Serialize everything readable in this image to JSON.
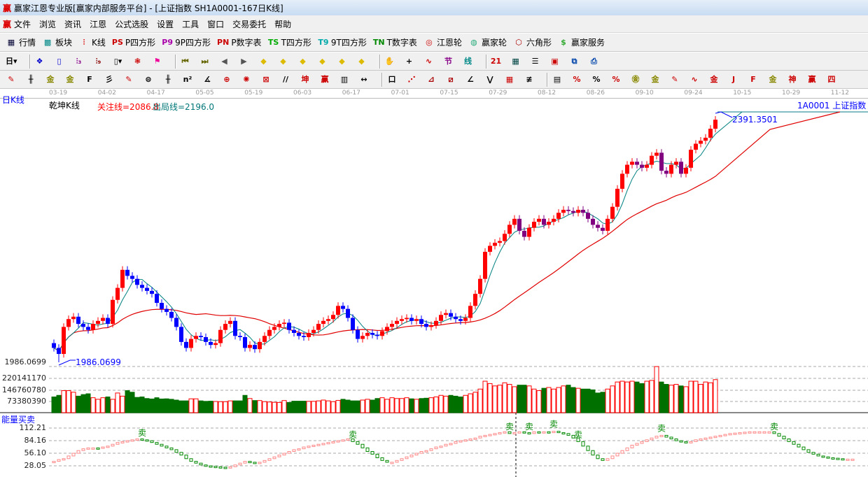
{
  "window": {
    "title": "赢家江恩专业版[赢家内部服务平台] - [上证指数  SH1A0001-167日K线]",
    "logo": "赢"
  },
  "menu": [
    "文件",
    "浏览",
    "资讯",
    "江恩",
    "公式选股",
    "设置",
    "工具",
    "窗口",
    "交易委托",
    "帮助"
  ],
  "toolbar1": [
    {
      "icon": "quote-table-icon",
      "glyph": "▦",
      "color": "#003",
      "label": "行情"
    },
    {
      "icon": "sector-icon",
      "glyph": "▩",
      "color": "#088",
      "label": "板块"
    },
    {
      "icon": "kline-icon",
      "glyph": "⫶",
      "color": "#d00",
      "label": "K线"
    },
    {
      "icon": "ps-icon",
      "glyph": "PS",
      "color": "#c00",
      "label": "P四方形"
    },
    {
      "icon": "p9-icon",
      "glyph": "P9",
      "color": "#a0a",
      "label": "9P四方形"
    },
    {
      "icon": "pn-icon",
      "glyph": "PN",
      "color": "#c00",
      "label": "P数字表"
    },
    {
      "icon": "ts-icon",
      "glyph": "TS",
      "color": "#0a0",
      "label": "T四方形"
    },
    {
      "icon": "t9-icon",
      "glyph": "T9",
      "color": "#0aa",
      "label": "9T四方形"
    },
    {
      "icon": "tn-icon",
      "glyph": "TN",
      "color": "#080",
      "label": "T数字表"
    },
    {
      "icon": "gann-wheel-icon",
      "glyph": "◎",
      "color": "#c00",
      "label": "江恩轮"
    },
    {
      "icon": "winner-wheel-icon",
      "glyph": "◍",
      "color": "#2a7",
      "label": "赢家轮"
    },
    {
      "icon": "hexagon-icon",
      "glyph": "⬡",
      "color": "#a00",
      "label": "六角形"
    },
    {
      "icon": "dollar-icon",
      "glyph": "$",
      "color": "#3a3",
      "label": "赢家服务"
    }
  ],
  "toolbar2": [
    {
      "icon": "period-day-icon",
      "glyph": "日▾",
      "color": "#000"
    },
    {
      "sep": true
    },
    {
      "icon": "chart-style-icon",
      "glyph": "❖",
      "color": "#00c"
    },
    {
      "icon": "notes-icon",
      "glyph": "▯",
      "color": "#00c"
    },
    {
      "icon": "ma3-icon",
      "glyph": "⫶₃",
      "color": "#808"
    },
    {
      "icon": "ma9-icon",
      "glyph": "⫶₉",
      "color": "#800"
    },
    {
      "icon": "candle-icon",
      "glyph": "▯▾",
      "color": "#000"
    },
    {
      "icon": "qiankun-icon",
      "glyph": "❃",
      "color": "#c00"
    },
    {
      "icon": "flag-icon",
      "glyph": "⚑",
      "color": "#e09"
    },
    {
      "sep": true
    },
    {
      "icon": "first-icon",
      "glyph": "⏮",
      "color": "#660"
    },
    {
      "icon": "last-icon",
      "glyph": "⏭",
      "color": "#660"
    },
    {
      "icon": "prev-icon",
      "glyph": "◀",
      "color": "#555"
    },
    {
      "icon": "next-icon",
      "glyph": "▶",
      "color": "#555"
    },
    {
      "icon": "left-diamond-icon",
      "glyph": "◆",
      "color": "#db0"
    },
    {
      "icon": "right-diamond-icon",
      "glyph": "◆",
      "color": "#db0"
    },
    {
      "icon": "expand-h-icon",
      "glyph": "◆",
      "color": "#db0"
    },
    {
      "icon": "shrink-icon",
      "glyph": "◆",
      "color": "#db0"
    },
    {
      "icon": "expand-v-icon",
      "glyph": "◆",
      "color": "#db0"
    },
    {
      "icon": "expand-all-icon",
      "glyph": "◆",
      "color": "#db0"
    },
    {
      "sep": true
    },
    {
      "icon": "hand-icon",
      "glyph": "✋",
      "color": "#000"
    },
    {
      "icon": "crosshair-icon",
      "glyph": "+",
      "color": "#000"
    },
    {
      "icon": "draw-line-icon",
      "glyph": "∿",
      "color": "#c00"
    },
    {
      "icon": "section-icon",
      "glyph": "节",
      "color": "#808"
    },
    {
      "icon": "line-icon",
      "glyph": "线",
      "color": "#088"
    },
    {
      "sep": true
    },
    {
      "icon": "calendar-icon",
      "glyph": "21",
      "color": "#c00"
    },
    {
      "icon": "calculator-icon",
      "glyph": "▦",
      "color": "#044"
    },
    {
      "icon": "report-icon",
      "glyph": "☰",
      "color": "#000"
    },
    {
      "icon": "save-icon",
      "glyph": "▣",
      "color": "#c00"
    },
    {
      "icon": "network-icon",
      "glyph": "⧉",
      "color": "#04a"
    },
    {
      "icon": "print-icon",
      "glyph": "⎙",
      "color": "#04a"
    }
  ],
  "toolbar3": [
    {
      "icon": "pen-icon",
      "glyph": "✎",
      "color": "#c00"
    },
    {
      "icon": "parallel-icon",
      "glyph": "╫",
      "color": "#000"
    },
    {
      "icon": "gold-icon",
      "glyph": "金",
      "color": "#880"
    },
    {
      "icon": "gold2-icon",
      "glyph": "金",
      "color": "#880"
    },
    {
      "icon": "fib-icon",
      "glyph": "F",
      "color": "#000"
    },
    {
      "icon": "spiral-icon",
      "glyph": "彡",
      "color": "#000"
    },
    {
      "icon": "pen2-icon",
      "glyph": "✎",
      "color": "#c00"
    },
    {
      "icon": "circle-icon",
      "glyph": "⊜",
      "color": "#000"
    },
    {
      "icon": "lines-icon",
      "glyph": "╫",
      "color": "#000"
    },
    {
      "icon": "n2-icon",
      "glyph": "n²",
      "color": "#000"
    },
    {
      "icon": "angle-icon",
      "glyph": "∡",
      "color": "#000"
    },
    {
      "icon": "target-icon",
      "glyph": "⊕",
      "color": "#c00"
    },
    {
      "icon": "web-icon",
      "glyph": "✺",
      "color": "#c00"
    },
    {
      "icon": "box-icon",
      "glyph": "⊠",
      "color": "#c00"
    },
    {
      "icon": "slash-icon",
      "glyph": "//",
      "color": "#000"
    },
    {
      "icon": "kun-icon",
      "glyph": "坤",
      "color": "#c00"
    },
    {
      "icon": "ying-icon",
      "glyph": "赢",
      "color": "#c00"
    },
    {
      "icon": "grid-icon",
      "glyph": "▥",
      "color": "#000"
    },
    {
      "icon": "measure-icon",
      "glyph": "↔",
      "color": "#000"
    },
    {
      "sep": true
    },
    {
      "icon": "rect-icon",
      "glyph": "口",
      "color": "#000"
    },
    {
      "icon": "fan-icon",
      "glyph": "⋰",
      "color": "#c00"
    },
    {
      "icon": "fan2-icon",
      "glyph": "⊿",
      "color": "#a00"
    },
    {
      "icon": "fan3-icon",
      "glyph": "⧄",
      "color": "#a00"
    },
    {
      "icon": "gann-fan-icon",
      "glyph": "∠",
      "color": "#000"
    },
    {
      "icon": "zigzag-icon",
      "glyph": "⋁",
      "color": "#000"
    },
    {
      "icon": "grid2-icon",
      "glyph": "▦",
      "color": "#c00"
    },
    {
      "icon": "channel-icon",
      "glyph": "≢",
      "color": "#000"
    },
    {
      "sep": true
    },
    {
      "icon": "table-icon",
      "glyph": "▤",
      "color": "#000"
    },
    {
      "icon": "percent-line-icon",
      "glyph": "%",
      "color": "#c00"
    },
    {
      "icon": "percent-icon",
      "glyph": "%",
      "color": "#000"
    },
    {
      "icon": "percent-lines-icon",
      "glyph": "%",
      "color": "#c00"
    },
    {
      "icon": "gold-circle-icon",
      "glyph": "㊎",
      "color": "#880"
    },
    {
      "icon": "gold-lines-icon",
      "glyph": "金",
      "color": "#880"
    },
    {
      "icon": "marker-icon",
      "glyph": "✎",
      "color": "#c00"
    },
    {
      "icon": "wave-icon",
      "glyph": "∿",
      "color": "#c00"
    },
    {
      "icon": "gold-under-icon",
      "glyph": "金",
      "color": "#c00"
    },
    {
      "icon": "j-angle-icon",
      "glyph": "J",
      "color": "#c00"
    },
    {
      "icon": "f-angle-icon",
      "glyph": "F",
      "color": "#c00"
    },
    {
      "icon": "gold-angle-icon",
      "glyph": "金",
      "color": "#880"
    },
    {
      "icon": "shen-angle-icon",
      "glyph": "神",
      "color": "#c00"
    },
    {
      "icon": "ying-angle-icon",
      "glyph": "赢",
      "color": "#c00"
    },
    {
      "icon": "four-angle-icon",
      "glyph": "四",
      "color": "#c00"
    }
  ],
  "chart": {
    "period_label": "日K线",
    "indicator_name": "乾坤K线",
    "attention_line": "关注线=2086.8",
    "exit_line": "出局线=2196.0",
    "symbol_label": "1A0001  上证指数",
    "high_label": "2391.3501",
    "low_label": "1986.0699",
    "price_axis_low": "1986.0699",
    "colors": {
      "up": "#ff0000",
      "down": "#0000ff",
      "down_late": "#800080",
      "ma_short": "#008080",
      "ma_long": "#e00000",
      "vol_up": "#ff0000",
      "vol_down": "#007000"
    }
  },
  "volume_panel": {
    "ticks": [
      "220141170",
      "146760780",
      "73380390"
    ]
  },
  "energy_panel": {
    "title": "能量买卖",
    "ticks": [
      "112.21",
      "84.16",
      "56.10",
      "28.05"
    ],
    "sell_label": "卖",
    "sell_indices": [
      18,
      61,
      93,
      97,
      102,
      107,
      124,
      147
    ]
  },
  "chart_data": {
    "type": "candlestick",
    "dates": [
      "03-19",
      "04-02",
      "04-17",
      "05-05",
      "05-19",
      "06-03",
      "06-17",
      "07-01",
      "07-15",
      "07-29",
      "08-12",
      "08-26",
      "09-10",
      "09-24",
      "10-15",
      "10-29",
      "11-12"
    ],
    "price_range": [
      1986.0699,
      2391.3501
    ],
    "close": [
      2010,
      2000,
      2045,
      2058,
      2062,
      2050,
      2045,
      2040,
      2050,
      2055,
      2060,
      2050,
      2090,
      2110,
      2140,
      2130,
      2125,
      2115,
      2110,
      2105,
      2100,
      2085,
      2075,
      2070,
      2060,
      2045,
      2020,
      2010,
      2025,
      2030,
      2028,
      2020,
      2015,
      2018,
      2040,
      2050,
      2055,
      2030,
      2028,
      2010,
      2015,
      2008,
      2020,
      2030,
      2040,
      2045,
      2050,
      2052,
      2040,
      2035,
      2030,
      2028,
      2035,
      2040,
      2050,
      2055,
      2058,
      2065,
      2080,
      2075,
      2060,
      2040,
      2025,
      2030,
      2035,
      2032,
      2030,
      2038,
      2045,
      2050,
      2055,
      2058,
      2060,
      2055,
      2058,
      2050,
      2045,
      2048,
      2055,
      2065,
      2068,
      2062,
      2058,
      2055,
      2060,
      2080,
      2100,
      2125,
      2170,
      2180,
      2185,
      2188,
      2200,
      2215,
      2225,
      2205,
      2195,
      2210,
      2220,
      2225,
      2215,
      2220,
      2225,
      2235,
      2240,
      2238,
      2235,
      2240,
      2235,
      2225,
      2215,
      2210,
      2205,
      2225,
      2245,
      2275,
      2300,
      2315,
      2320,
      2315,
      2310,
      2315,
      2330,
      2335,
      2305,
      2300,
      2315,
      2320,
      2300,
      2310,
      2340,
      2350,
      2355,
      2360,
      2375,
      2390
    ],
    "volume": [
      100000000.0,
      110000000.0,
      140000000.0,
      140000000.0,
      130000000.0,
      105000000.0,
      115000000.0,
      120000000.0,
      95000000.0,
      85000000.0,
      95000000.0,
      100000000.0,
      85000000.0,
      125000000.0,
      105000000.0,
      140000000.0,
      130000000.0,
      97000000.0,
      100000000.0,
      90000000.0,
      87000000.0,
      95000000.0,
      87000000.0,
      88000000.0,
      85000000.0,
      80000000.0,
      75000000.0,
      75000000.0,
      88000000.0,
      88000000.0,
      75000000.0,
      72000000.0,
      73000000.0,
      71000000.0,
      70000000.0,
      70000000.0,
      75000000.0,
      75000000.0,
      75000000.0,
      110000000.0,
      90000000.0,
      77000000.0,
      77000000.0,
      70000000.0,
      68000000.0,
      66000000.0,
      65000000.0,
      77000000.0,
      65000000.0,
      73000000.0,
      73000000.0,
      73000000.0,
      72000000.0,
      72000000.0,
      75000000.0,
      80000000.0,
      75000000.0,
      70000000.0,
      78000000.0,
      85000000.0,
      80000000.0,
      75000000.0,
      75000000.0,
      80000000.0,
      85000000.0,
      80000000.0,
      90000000.0,
      95000000.0,
      85000000.0,
      95000000.0,
      90000000.0,
      90000000.0,
      95000000.0,
      88000000.0,
      85000000.0,
      90000000.0,
      92000000.0,
      95000000.0,
      100000000.0,
      110000000.0,
      105000000.0,
      110000000.0,
      105000000.0,
      100000000.0,
      110000000.0,
      120000000.0,
      130000000.0,
      150000000.0,
      200000000.0,
      185000000.0,
      170000000.0,
      175000000.0,
      190000000.0,
      180000000.0,
      165000000.0,
      175000000.0,
      175000000.0,
      170000000.0,
      150000000.0,
      140000000.0,
      155000000.0,
      160000000.0,
      150000000.0,
      160000000.0,
      170000000.0,
      175000000.0,
      160000000.0,
      155000000.0,
      150000000.0,
      150000000.0,
      145000000.0,
      125000000.0,
      130000000.0,
      150000000.0,
      170000000.0,
      195000000.0,
      200000000.0,
      195000000.0,
      200000000.0,
      195000000.0,
      185000000.0,
      200000000.0,
      205000000.0,
      293000000.0,
      195000000.0,
      180000000.0,
      175000000.0,
      180000000.0,
      170000000.0,
      165000000.0,
      200000000.0,
      200000000.0,
      180000000.0,
      195000000.0,
      190000000.0,
      210000000.0
    ],
    "energy": [
      38,
      42,
      44,
      50,
      56,
      62,
      66,
      68,
      68,
      67,
      70,
      72,
      76,
      80,
      82,
      84,
      86,
      88,
      86,
      84,
      80,
      76,
      72,
      68,
      64,
      58,
      52,
      44,
      38,
      34,
      30,
      28,
      27,
      26,
      25,
      24,
      26,
      30,
      34,
      38,
      36,
      34,
      36,
      40,
      44,
      48,
      52,
      56,
      60,
      64,
      66,
      70,
      72,
      74,
      76,
      78,
      80,
      82,
      84,
      86,
      88,
      82,
      76,
      68,
      60,
      54,
      46,
      40,
      36,
      36,
      40,
      44,
      48,
      52,
      56,
      60,
      62,
      66,
      70,
      72,
      76,
      78,
      82,
      84,
      86,
      88,
      90,
      94,
      96,
      98,
      100,
      102,
      104,
      100,
      102,
      104,
      102,
      100,
      104,
      102,
      104,
      103,
      105,
      102,
      100,
      96,
      90,
      82,
      72,
      62,
      52,
      44,
      40,
      44,
      50,
      56,
      62,
      68,
      74,
      78,
      82,
      86,
      90,
      94,
      96,
      92,
      88,
      84,
      82,
      80,
      82,
      86,
      88,
      90,
      92,
      94,
      96,
      98,
      100,
      101,
      102,
      103,
      104,
      104,
      104,
      104,
      104,
      100,
      94,
      88,
      82,
      76,
      70,
      64,
      58,
      54,
      50,
      48,
      46,
      45,
      44,
      43,
      43,
      43
    ],
    "energy_range": [
      28.05,
      112.21
    ]
  }
}
